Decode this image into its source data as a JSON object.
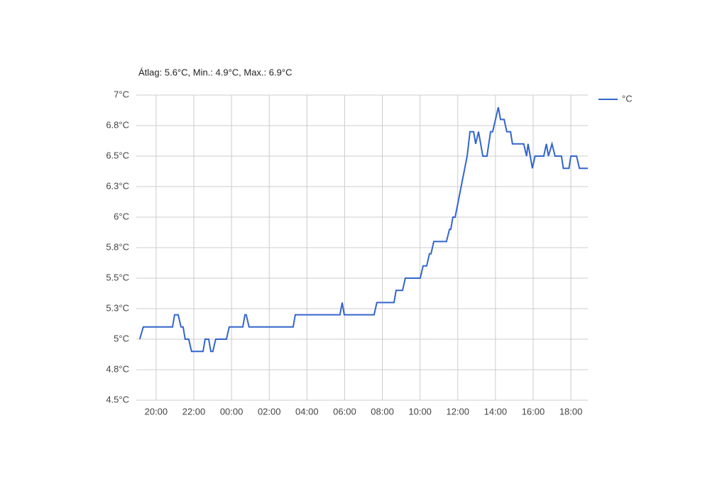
{
  "chart_data": {
    "type": "line",
    "title": "Átlag: 5.6°C, Min.: 4.9°C, Max.: 6.9°C",
    "x": [
      19.13,
      19.32,
      20.87,
      20.98,
      21.17,
      21.32,
      21.43,
      21.54,
      21.73,
      21.88,
      22.49,
      22.6,
      22.79,
      22.9,
      23.01,
      23.16,
      23.73,
      23.88,
      24.6,
      24.71,
      24.78,
      24.93,
      27.27,
      27.38,
      29.75,
      29.87,
      29.98,
      31.56,
      31.71,
      32.62,
      32.73,
      33.07,
      33.22,
      34.01,
      34.16,
      34.35,
      34.5,
      34.58,
      34.73,
      35.4,
      35.56,
      35.63,
      35.74,
      35.86,
      36.5,
      36.65,
      36.84,
      36.95,
      37.1,
      37.33,
      37.55,
      37.74,
      37.85,
      38.15,
      38.27,
      38.46,
      38.6,
      38.8,
      38.9,
      39.5,
      39.65,
      39.73,
      39.96,
      40.1,
      40.56,
      40.7,
      40.81,
      41.0,
      41.16,
      41.5,
      41.6,
      41.9,
      42.0,
      42.3,
      42.45,
      42.9
    ],
    "series": [
      {
        "name": "°C",
        "color": "#3366cc",
        "values": [
          5.0,
          5.1,
          5.1,
          5.2,
          5.2,
          5.1,
          5.1,
          5.0,
          5.0,
          4.9,
          4.9,
          5.0,
          5.0,
          4.9,
          4.9,
          5.0,
          5.0,
          5.1,
          5.1,
          5.2,
          5.2,
          5.1,
          5.1,
          5.2,
          5.2,
          5.3,
          5.2,
          5.2,
          5.3,
          5.3,
          5.4,
          5.4,
          5.5,
          5.5,
          5.6,
          5.6,
          5.7,
          5.7,
          5.8,
          5.8,
          5.9,
          5.9,
          6.0,
          6.0,
          6.5,
          6.7,
          6.7,
          6.6,
          6.7,
          6.5,
          6.5,
          6.7,
          6.7,
          6.9,
          6.8,
          6.8,
          6.7,
          6.7,
          6.6,
          6.6,
          6.5,
          6.6,
          6.4,
          6.5,
          6.5,
          6.6,
          6.5,
          6.6,
          6.5,
          6.5,
          6.4,
          6.4,
          6.5,
          6.5,
          6.4,
          6.4
        ]
      }
    ],
    "xlim": [
      18.95,
      42.9
    ],
    "xticks": [
      {
        "value": 20,
        "label": "20:00"
      },
      {
        "value": 22,
        "label": "22:00"
      },
      {
        "value": 24,
        "label": "00:00"
      },
      {
        "value": 26,
        "label": "02:00"
      },
      {
        "value": 28,
        "label": "04:00"
      },
      {
        "value": 30,
        "label": "06:00"
      },
      {
        "value": 32,
        "label": "08:00"
      },
      {
        "value": 34,
        "label": "10:00"
      },
      {
        "value": 36,
        "label": "12:00"
      },
      {
        "value": 38,
        "label": "14:00"
      },
      {
        "value": 40,
        "label": "16:00"
      },
      {
        "value": 42,
        "label": "18:00"
      }
    ],
    "ylim": [
      4.5,
      7
    ],
    "yticks": [
      {
        "value": 4.5,
        "label": "4.5°C"
      },
      {
        "value": 4.75,
        "label": "4.8°C"
      },
      {
        "value": 5,
        "label": "5°C"
      },
      {
        "value": 5.25,
        "label": "5.3°C"
      },
      {
        "value": 5.5,
        "label": "5.5°C"
      },
      {
        "value": 5.75,
        "label": "5.8°C"
      },
      {
        "value": 6,
        "label": "6°C"
      },
      {
        "value": 6.25,
        "label": "6.3°C"
      },
      {
        "value": 6.5,
        "label": "6.5°C"
      },
      {
        "value": 6.75,
        "label": "6.8°C"
      },
      {
        "value": 7,
        "label": "7°C"
      }
    ],
    "grid": true,
    "legend": "right"
  }
}
